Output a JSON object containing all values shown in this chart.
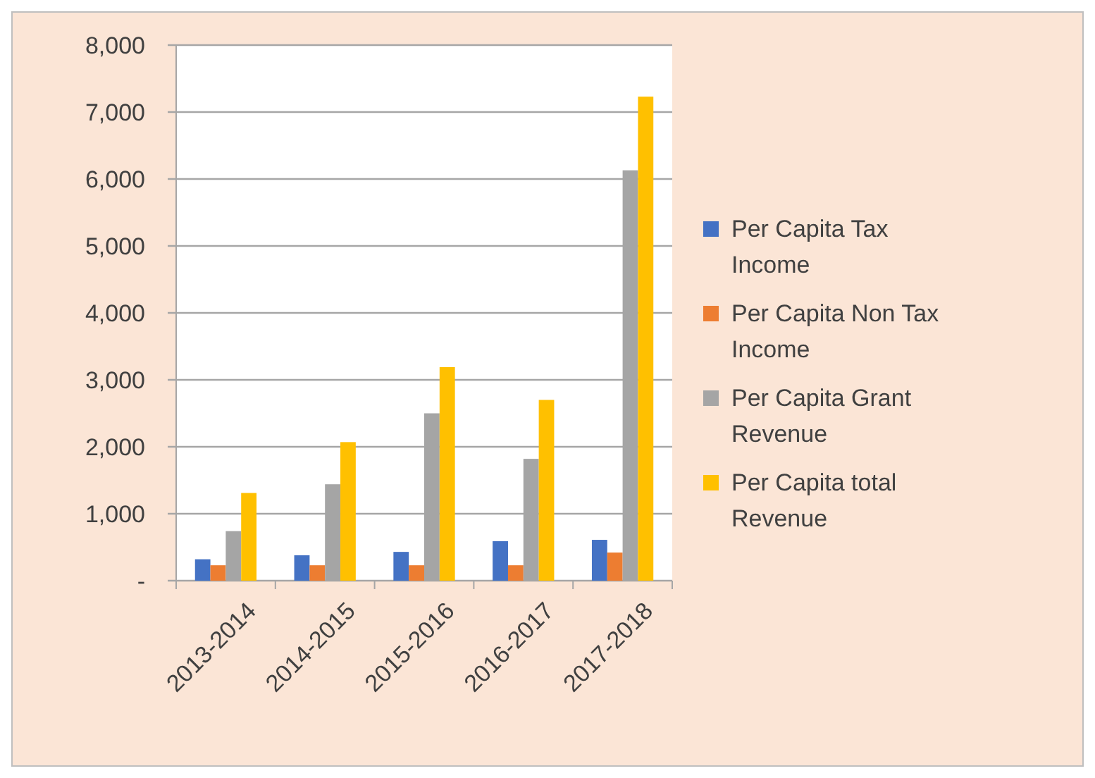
{
  "chart_data": {
    "type": "bar",
    "categories": [
      "2013-2014",
      "2014-2015",
      "2015-2016",
      "2016-2017",
      "2017-2018"
    ],
    "series": [
      {
        "name": "Per Capita Tax Income",
        "color": "#4472c4",
        "values": [
          320,
          380,
          430,
          590,
          610
        ]
      },
      {
        "name": "Per Capita Non Tax Income",
        "color": "#ed7d31",
        "values": [
          230,
          230,
          230,
          230,
          420
        ]
      },
      {
        "name": "Per Capita Grant Revenue",
        "color": "#a5a5a5",
        "values": [
          740,
          1440,
          2500,
          1820,
          6130
        ]
      },
      {
        "name": "Per Capita total Revenue",
        "color": "#ffc000",
        "values": [
          1310,
          2070,
          3190,
          2700,
          7230
        ]
      }
    ],
    "ylim": [
      0,
      8000
    ],
    "yticks": [
      {
        "value": 0,
        "label": "-"
      },
      {
        "value": 1000,
        "label": "1,000"
      },
      {
        "value": 2000,
        "label": "2,000"
      },
      {
        "value": 3000,
        "label": "3,000"
      },
      {
        "value": 4000,
        "label": "4,000"
      },
      {
        "value": 5000,
        "label": "5,000"
      },
      {
        "value": 6000,
        "label": "6,000"
      },
      {
        "value": 7000,
        "label": "7,000"
      },
      {
        "value": 8000,
        "label": "8,000"
      }
    ],
    "grid": "y",
    "legend": "right"
  }
}
